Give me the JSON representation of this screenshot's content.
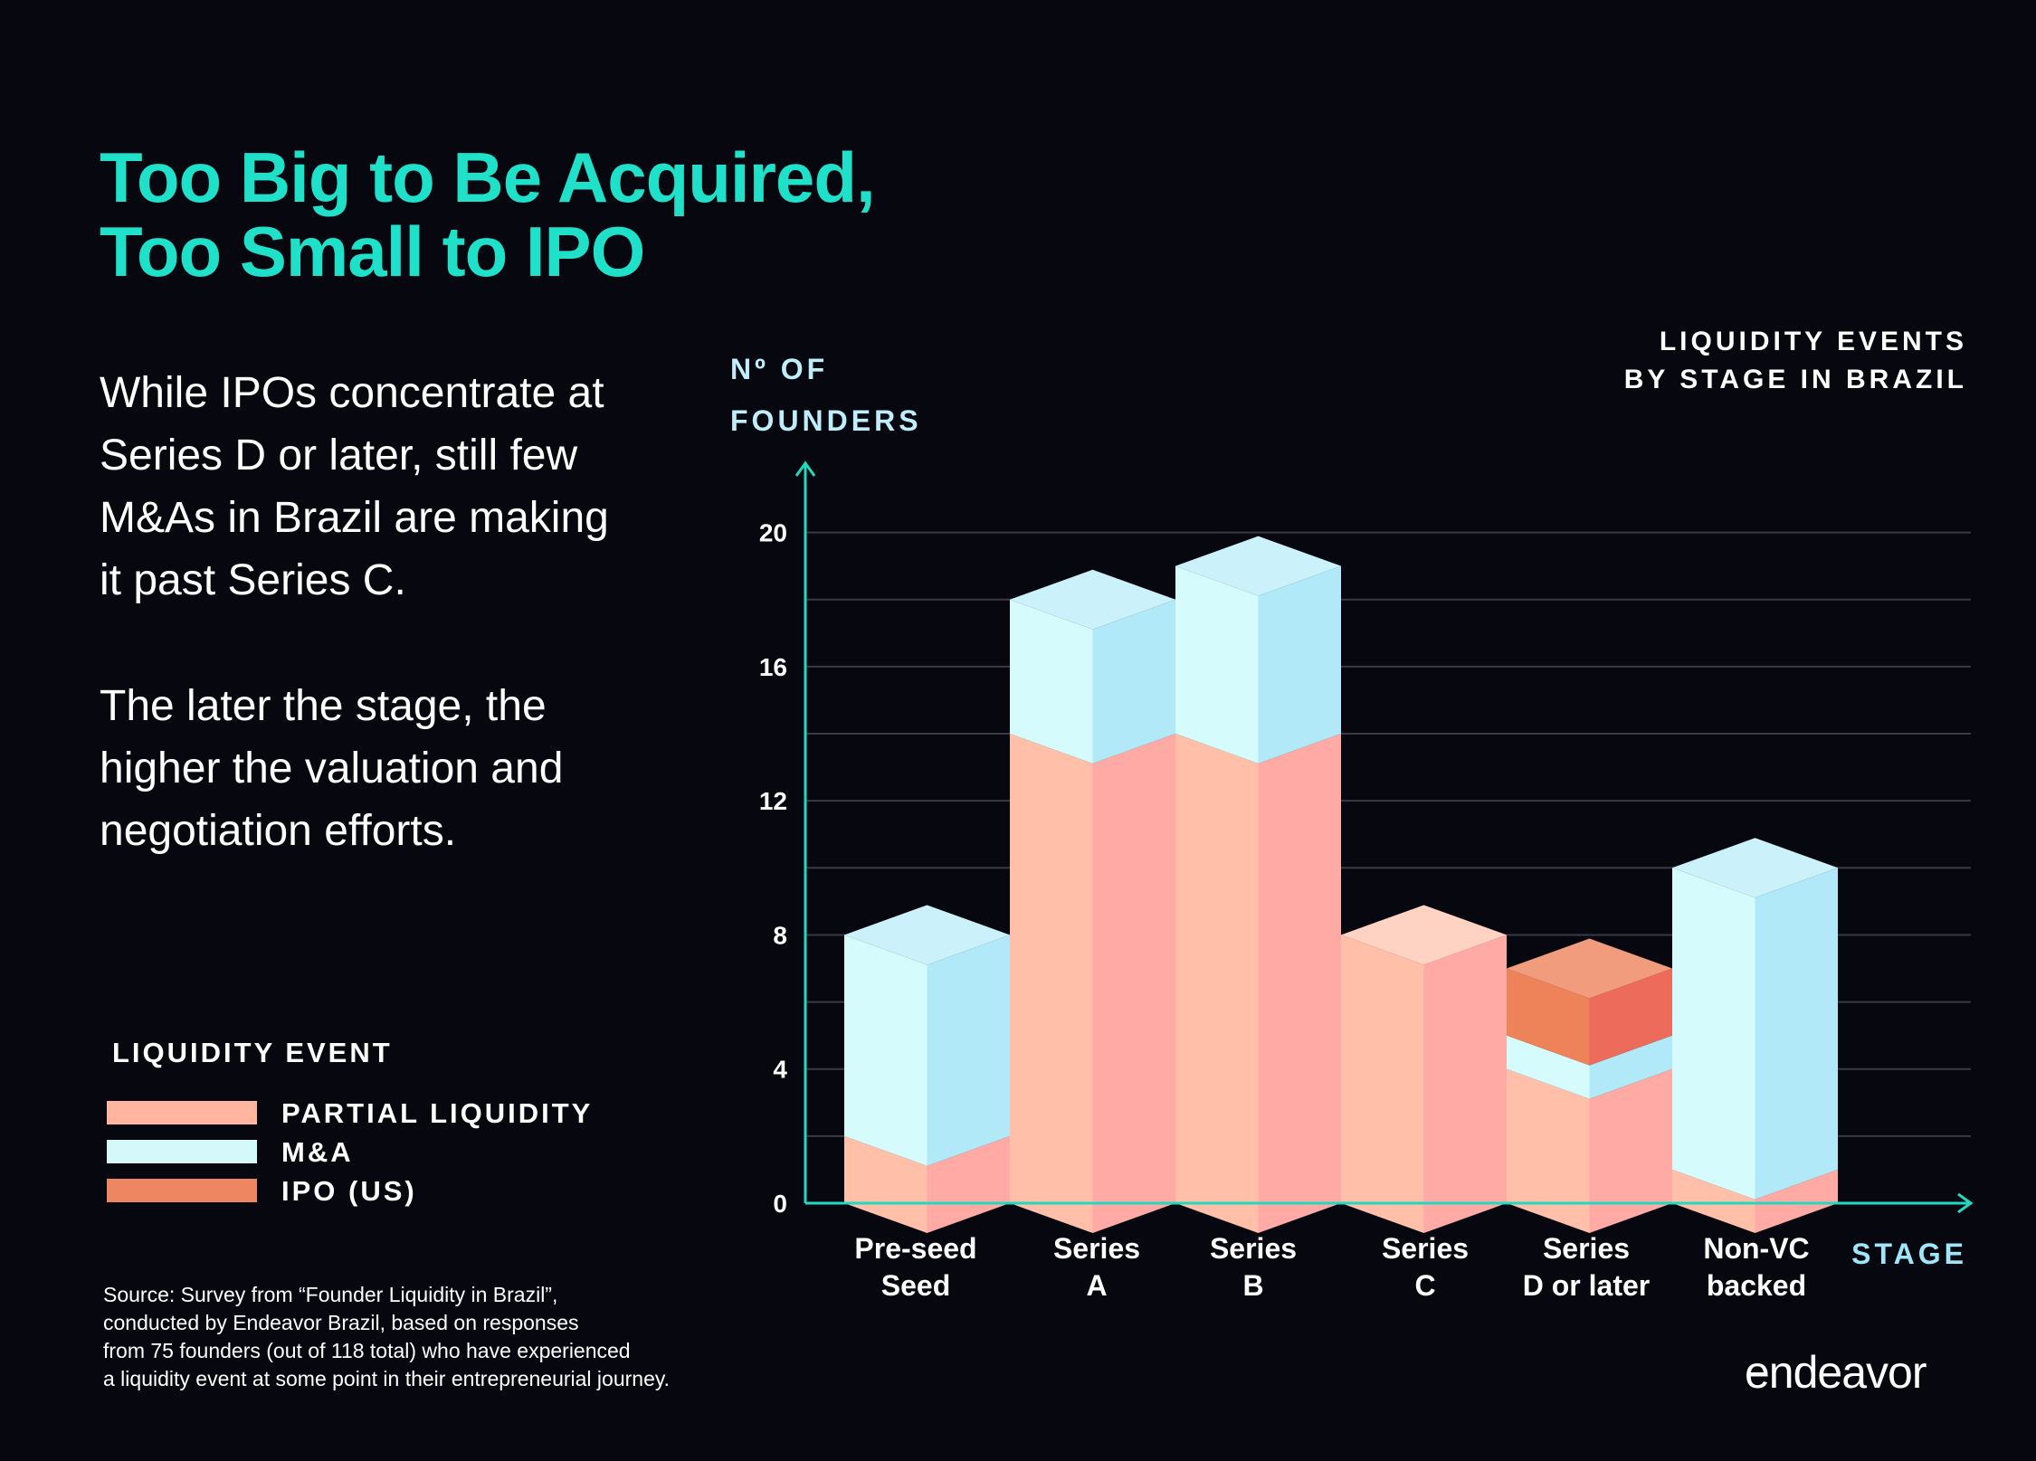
{
  "title_lines": [
    "Too Big to Be Acquired,",
    "Too Small to IPO"
  ],
  "description_1": "While IPOs concentrate at Series D or later, still few M&As in Brazil are making it past Series C.",
  "description_2": "The later the stage, the higher the valuation and negotiation efforts.",
  "legend": {
    "title": "LIQUIDITY EVENT",
    "items": [
      {
        "label": "PARTIAL LIQUIDITY",
        "color": "#ffb59e"
      },
      {
        "label": "M&A",
        "color": "#d5f8fb"
      },
      {
        "label": "IPO (US)",
        "color": "#ee8761"
      }
    ]
  },
  "source_lines": [
    "Source: Survey from “Founder Liquidity in Brazil”,",
    "conducted by Endeavor Brazil, based on responses",
    "from 75 founders (out of 118 total) who have experienced",
    "a liquidity event at some point in their entrepreneurial journey."
  ],
  "logo_text": "endeavor",
  "chart_data": {
    "type": "bar",
    "stacked": true,
    "title_lines": [
      "LIQUIDITY EVENTS",
      "BY STAGE IN BRAZIL"
    ],
    "ylabel_lines": [
      "Nº OF",
      "FOUNDERS"
    ],
    "xlabel": "STAGE",
    "categories": [
      [
        "Pre-seed",
        "Seed"
      ],
      [
        "Series",
        "A"
      ],
      [
        "Series",
        "B"
      ],
      [
        "Series",
        "C"
      ],
      [
        "Series",
        "D or later"
      ],
      [
        "Non-VC",
        "backed"
      ]
    ],
    "series": [
      {
        "name": "PARTIAL LIQUIDITY",
        "values": [
          2,
          14,
          14,
          8,
          4,
          1
        ]
      },
      {
        "name": "M&A",
        "values": [
          6,
          4,
          5,
          0,
          1,
          9
        ]
      },
      {
        "name": "IPO (US)",
        "values": [
          0,
          0,
          0,
          0,
          2,
          0
        ]
      }
    ],
    "yticks": [
      0,
      4,
      8,
      12,
      16,
      20
    ],
    "ylim": [
      0,
      22
    ],
    "grid": true,
    "colors": {
      "partial_left": "#ffbfa9",
      "partial_right": "#ffaaa5",
      "partial_top": "#ffd3c3",
      "ma_left": "#d5fbfc",
      "ma_right": "#b2e9f8",
      "ma_top": "#cbf1fb",
      "ipo_left": "#ee8359",
      "ipo_right": "#ec6b5b",
      "ipo_top": "#f29c7e",
      "axis": "#22d8c0",
      "grid": "#3a3a47"
    }
  }
}
